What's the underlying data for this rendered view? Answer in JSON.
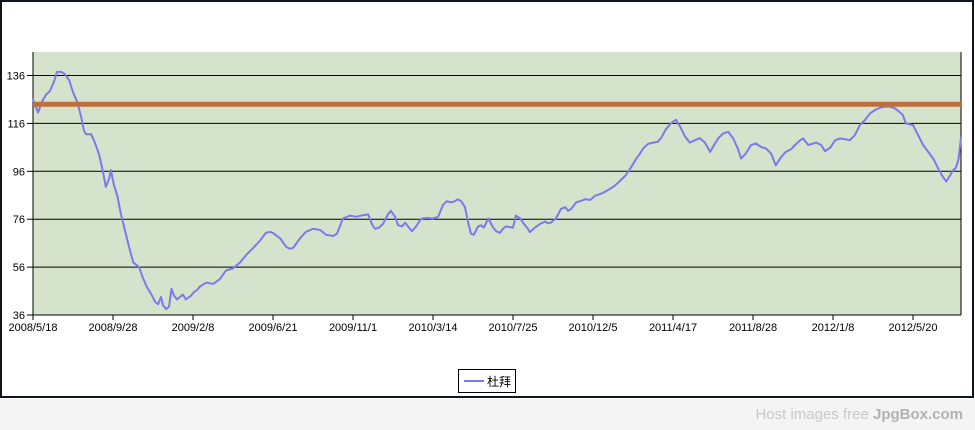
{
  "window": {
    "background": "#ffffff",
    "border_color": "#10141f"
  },
  "watermark": {
    "prefix": "Host images free ",
    "brand": "JpgBox.com",
    "prefix_color": "#c9c9c9",
    "brand_color": "#b2b2b2",
    "strip_color": "#f4f4f4"
  },
  "chart_data": {
    "type": "line",
    "title": "",
    "plot_background": "#dbe7d3",
    "plot_background_alt": "#d1dec7",
    "gridline_color": "#000000",
    "x_axis": {
      "unit": "date (weekly samples)",
      "tick_labels": [
        "2008/5/18",
        "2008/9/28",
        "2009/2/8",
        "2009/6/21",
        "2009/11/1",
        "2010/3/14",
        "2010/7/25",
        "2010/12/5",
        "2011/4/17",
        "2011/8/28",
        "2012/1/8",
        "2012/5/20"
      ],
      "tick_weeks": [
        0,
        19,
        38,
        57,
        76,
        95,
        114,
        133,
        152,
        171,
        190,
        209
      ],
      "range_weeks": [
        0,
        220.4
      ]
    },
    "y_axis": {
      "tick_values": [
        36,
        56,
        76,
        96,
        116,
        136
      ],
      "range": [
        36,
        146
      ]
    },
    "reference_line": {
      "value": 124,
      "color": "#c06f3c"
    },
    "legend": {
      "position": "bottom-center"
    },
    "series": [
      {
        "name": "杜拜",
        "color": "#7a7aee",
        "points": [
          [
            0,
            126
          ],
          [
            1.2,
            120.5
          ],
          [
            2.1,
            125
          ],
          [
            3.1,
            128
          ],
          [
            4,
            129.5
          ],
          [
            5,
            133.5
          ],
          [
            5.7,
            137.5
          ],
          [
            6.7,
            137.5
          ],
          [
            7.6,
            136.5
          ],
          [
            8.6,
            134
          ],
          [
            9.5,
            129
          ],
          [
            10.5,
            125
          ],
          [
            11.4,
            119
          ],
          [
            12.1,
            113
          ],
          [
            12.6,
            111.5
          ],
          [
            13.8,
            111.5
          ],
          [
            14.7,
            108
          ],
          [
            15.7,
            103
          ],
          [
            16.6,
            96
          ],
          [
            17.3,
            89.5
          ],
          [
            18.1,
            93
          ],
          [
            18.5,
            96.5
          ],
          [
            19.2,
            90.5
          ],
          [
            20,
            86
          ],
          [
            20.9,
            78
          ],
          [
            21.9,
            71
          ],
          [
            22.8,
            64.5
          ],
          [
            23.8,
            58
          ],
          [
            25.2,
            56
          ],
          [
            26.1,
            51.5
          ],
          [
            27.1,
            47.5
          ],
          [
            28,
            45
          ],
          [
            29,
            41.5
          ],
          [
            29.7,
            40.5
          ],
          [
            30.4,
            43.5
          ],
          [
            30.9,
            40
          ],
          [
            31.6,
            38.5
          ],
          [
            32.3,
            39.5
          ],
          [
            32.9,
            47
          ],
          [
            33.5,
            44
          ],
          [
            34.2,
            42.5
          ],
          [
            34.9,
            43.5
          ],
          [
            35.6,
            44.5
          ],
          [
            36.3,
            42.5
          ],
          [
            37.5,
            44
          ],
          [
            38.2,
            45.5
          ],
          [
            39,
            46.5
          ],
          [
            39.7,
            48
          ],
          [
            41.1,
            49.5
          ],
          [
            42.8,
            49
          ],
          [
            44.4,
            51
          ],
          [
            45.8,
            54.5
          ],
          [
            47.5,
            55.5
          ],
          [
            49.2,
            58
          ],
          [
            50.6,
            61
          ],
          [
            52.3,
            64
          ],
          [
            53.9,
            67
          ],
          [
            55.3,
            70.3
          ],
          [
            56.3,
            70.7
          ],
          [
            57,
            70.3
          ],
          [
            58.7,
            68
          ],
          [
            60.1,
            64.5
          ],
          [
            61,
            63.7
          ],
          [
            61.8,
            64
          ],
          [
            63.4,
            68
          ],
          [
            64.8,
            70.7
          ],
          [
            66.5,
            72
          ],
          [
            68.2,
            71.5
          ],
          [
            69.6,
            69.5
          ],
          [
            71.3,
            69
          ],
          [
            72.2,
            70
          ],
          [
            72.9,
            73
          ],
          [
            73.6,
            76.3
          ],
          [
            75.3,
            77.5
          ],
          [
            76.7,
            77
          ],
          [
            78.4,
            77.7
          ],
          [
            79.6,
            78
          ],
          [
            80.5,
            74
          ],
          [
            81.2,
            72
          ],
          [
            82.2,
            72.5
          ],
          [
            83.1,
            74
          ],
          [
            84.3,
            78
          ],
          [
            85,
            79.5
          ],
          [
            86,
            77
          ],
          [
            86.7,
            73.5
          ],
          [
            87.6,
            73
          ],
          [
            88.4,
            74.5
          ],
          [
            89.3,
            72.5
          ],
          [
            90,
            71
          ],
          [
            91,
            73
          ],
          [
            91.9,
            75.5
          ],
          [
            92.6,
            76.4
          ],
          [
            93.8,
            76.5
          ],
          [
            95,
            76.3
          ],
          [
            96.2,
            77
          ],
          [
            97.4,
            82
          ],
          [
            98.3,
            83.5
          ],
          [
            99.3,
            83
          ],
          [
            100.2,
            83.5
          ],
          [
            100.9,
            84.3
          ],
          [
            101.7,
            83.5
          ],
          [
            102.6,
            81
          ],
          [
            103.3,
            75
          ],
          [
            104,
            70
          ],
          [
            104.7,
            69.5
          ],
          [
            105.7,
            73
          ],
          [
            106.4,
            73.5
          ],
          [
            107.1,
            72.5
          ],
          [
            108.1,
            76.3
          ],
          [
            109.3,
            72.5
          ],
          [
            110,
            71
          ],
          [
            110.9,
            70.3
          ],
          [
            111.6,
            72
          ],
          [
            112.3,
            73
          ],
          [
            113.3,
            72.7
          ],
          [
            114,
            72.5
          ],
          [
            114.7,
            77.5
          ],
          [
            115.7,
            76.3
          ],
          [
            116.4,
            74.5
          ],
          [
            117.6,
            71.8
          ],
          [
            118,
            70.6
          ],
          [
            119.2,
            72.5
          ],
          [
            120.4,
            74
          ],
          [
            121.6,
            75
          ],
          [
            122.3,
            74.3
          ],
          [
            123,
            74.6
          ],
          [
            124.2,
            76.3
          ],
          [
            125.4,
            80.3
          ],
          [
            126.4,
            81
          ],
          [
            127.1,
            79.5
          ],
          [
            127.8,
            80.2
          ],
          [
            129,
            83
          ],
          [
            130.2,
            83.7
          ],
          [
            131.3,
            84.4
          ],
          [
            132.3,
            84
          ],
          [
            133.5,
            85.8
          ],
          [
            134.7,
            86.5
          ],
          [
            135.9,
            87.5
          ],
          [
            137,
            88.6
          ],
          [
            138.2,
            90
          ],
          [
            139.4,
            92
          ],
          [
            140.6,
            94
          ],
          [
            141.8,
            97
          ],
          [
            143.2,
            101
          ],
          [
            144.2,
            103.5
          ],
          [
            144.9,
            105.5
          ],
          [
            146.1,
            107.5
          ],
          [
            147.3,
            108
          ],
          [
            148.4,
            108.3
          ],
          [
            149.2,
            110
          ],
          [
            150.3,
            113.5
          ],
          [
            151.5,
            116
          ],
          [
            152.7,
            117.5
          ],
          [
            153.7,
            114.6
          ],
          [
            154.9,
            110.4
          ],
          [
            156,
            108
          ],
          [
            157.2,
            109
          ],
          [
            158.4,
            109.8
          ],
          [
            159.6,
            108
          ],
          [
            160.8,
            104.1
          ],
          [
            161.5,
            106.2
          ],
          [
            162.7,
            109.7
          ],
          [
            163.9,
            111.8
          ],
          [
            165.1,
            112.5
          ],
          [
            166.3,
            109.7
          ],
          [
            167.4,
            105.5
          ],
          [
            168.2,
            101.3
          ],
          [
            169.3,
            103.4
          ],
          [
            170.5,
            106.9
          ],
          [
            171.7,
            107.6
          ],
          [
            172.9,
            106.2
          ],
          [
            174.1,
            105.5
          ],
          [
            175.3,
            103.4
          ],
          [
            176.4,
            98.5
          ],
          [
            177.7,
            102
          ],
          [
            178.8,
            104.1
          ],
          [
            180,
            105.2
          ],
          [
            181,
            107
          ],
          [
            182.2,
            109
          ],
          [
            182.9,
            109.7
          ],
          [
            184.1,
            107
          ],
          [
            185.3,
            107.6
          ],
          [
            186,
            108
          ],
          [
            187.2,
            107
          ],
          [
            188.1,
            104.4
          ],
          [
            189.3,
            105.8
          ],
          [
            190.5,
            109
          ],
          [
            191.7,
            109.7
          ],
          [
            192.9,
            109.4
          ],
          [
            194,
            109
          ],
          [
            195.2,
            111.1
          ],
          [
            196.4,
            115.3
          ],
          [
            197.6,
            117.4
          ],
          [
            198.8,
            120.2
          ],
          [
            200,
            121.6
          ],
          [
            201.2,
            122.6
          ],
          [
            202.4,
            123
          ],
          [
            203.5,
            123
          ],
          [
            204.7,
            122.3
          ],
          [
            205.9,
            120.6
          ],
          [
            206.6,
            119.5
          ],
          [
            207.3,
            116
          ],
          [
            208.3,
            115.6
          ],
          [
            209,
            115.3
          ],
          [
            210.2,
            111.1
          ],
          [
            211.4,
            107
          ],
          [
            212.6,
            104.1
          ],
          [
            213.8,
            101.3
          ],
          [
            215,
            97.1
          ],
          [
            216.1,
            93.6
          ],
          [
            216.9,
            91.8
          ],
          [
            217.8,
            94.3
          ],
          [
            218.5,
            96.4
          ],
          [
            219.2,
            97.5
          ],
          [
            219.8,
            101
          ],
          [
            220.4,
            110
          ]
        ]
      }
    ]
  }
}
